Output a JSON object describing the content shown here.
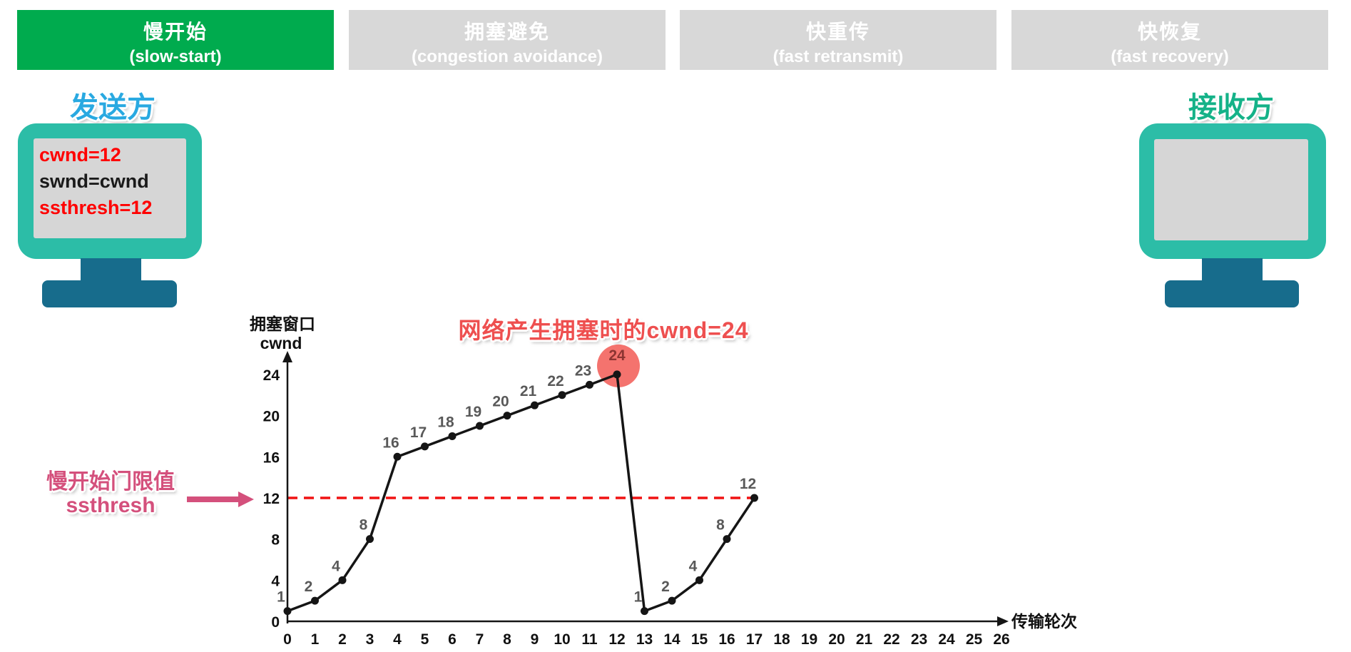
{
  "stages": [
    {
      "zh": "慢开始",
      "en": "(slow-start)",
      "active": true
    },
    {
      "zh": "拥塞避免",
      "en": "(congestion avoidance)",
      "active": false
    },
    {
      "zh": "快重传",
      "en": "(fast retransmit)",
      "active": false
    },
    {
      "zh": "快恢复",
      "en": "(fast recovery)",
      "active": false
    }
  ],
  "sender": {
    "label": "发送方",
    "screen_lines": [
      {
        "text": "cwnd=12",
        "color": "#ff0000"
      },
      {
        "text": "swnd=cwnd",
        "color": "#1a1a1a"
      },
      {
        "text": "ssthresh=12",
        "color": "#ff0000"
      }
    ]
  },
  "receiver": {
    "label": "接收方"
  },
  "annotations": {
    "congestion_note": "网络产生拥塞时的cwnd=24",
    "ssthresh_note_line1": "慢开始门限值",
    "ssthresh_note_line2": "ssthresh"
  },
  "chart_data": {
    "type": "line",
    "x": [
      0,
      1,
      2,
      3,
      4,
      5,
      6,
      7,
      8,
      9,
      10,
      11,
      12,
      13,
      14,
      15,
      16,
      17
    ],
    "y": [
      1,
      2,
      4,
      8,
      16,
      17,
      18,
      19,
      20,
      21,
      22,
      23,
      24,
      1,
      2,
      4,
      8,
      12
    ],
    "point_labels": [
      "1",
      "2",
      "4",
      "8",
      "16",
      "17",
      "18",
      "19",
      "20",
      "21",
      "22",
      "23",
      "24",
      "1",
      "2",
      "4",
      "8",
      "12"
    ],
    "x_ticks": [
      0,
      1,
      2,
      3,
      4,
      5,
      6,
      7,
      8,
      9,
      10,
      11,
      12,
      13,
      14,
      15,
      16,
      17,
      18,
      19,
      20,
      21,
      22,
      23,
      24,
      25,
      26
    ],
    "y_ticks": [
      0,
      4,
      8,
      12,
      16,
      20,
      24
    ],
    "xlim": [
      0,
      26
    ],
    "ylim": [
      0,
      26
    ],
    "xlabel": "传输轮次",
    "ylabel_line1": "拥塞窗口",
    "ylabel_line2": "cwnd",
    "grid": false,
    "ssthresh_value": 12,
    "ssthresh_line_x_start": 0,
    "ssthresh_line_x_end": 17,
    "highlight_point": {
      "x": 12,
      "y": 24,
      "label": "24"
    }
  },
  "colors": {
    "stage_active_bg": "#00ab4e",
    "stage_inactive_bg": "#d8d8d8",
    "stage_text": "#ffffff",
    "monitor_frame": "#2cbda7",
    "monitor_screen": "#d6d6d6",
    "monitor_stand": "#176c8c",
    "sender_label": "#29a9e1",
    "receiver_label": "#14b288",
    "congestion_note": "#ee4f4f",
    "ssthresh_note": "#d4507c",
    "ssthresh_arrow": "#d4507c",
    "ssthresh_dash": "#f01212",
    "highlight_circle": "#f4736e",
    "highlight_label": "#8d3431",
    "line": "#151515",
    "axis": "#151515",
    "point_label": "#595959",
    "tick_label": "#111111"
  }
}
